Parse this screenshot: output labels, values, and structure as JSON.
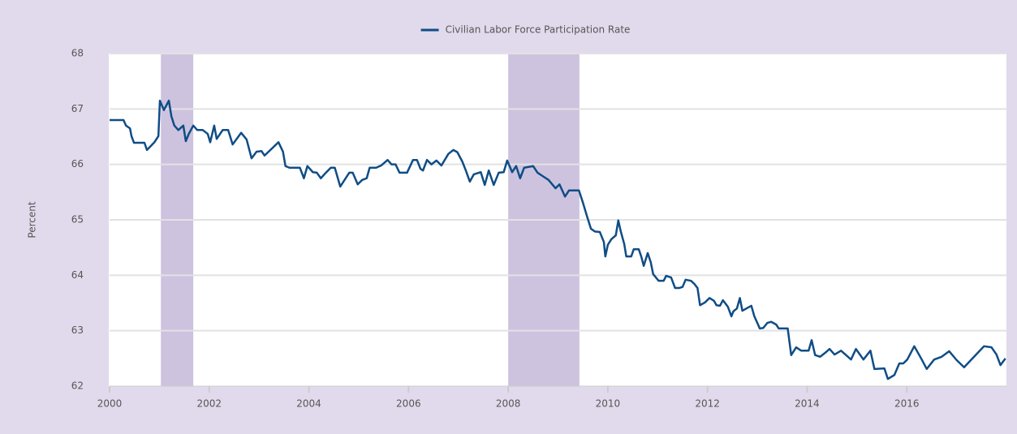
{
  "chart_data": {
    "type": "line",
    "y_label": "Percent",
    "xlim": [
      2000,
      2018
    ],
    "xticks": [
      2000,
      2002,
      2004,
      2006,
      2008,
      2010,
      2012,
      2014,
      2016
    ],
    "ylim": [
      62,
      68
    ],
    "yticks": [
      62,
      63,
      64,
      65,
      66,
      67,
      68
    ],
    "grid": true,
    "legend": "top",
    "shaded_periods": [
      {
        "start": 2001.03,
        "end": 2001.68,
        "color": "#cdc3df"
      },
      {
        "start": 2008.0,
        "end": 2009.43,
        "color": "#cdc3df"
      }
    ],
    "series": [
      {
        "name": "Civilian Labor Force Participation Rate",
        "color": "#0f4d86",
        "x": [
          2000.0,
          2000.28,
          2000.33,
          2000.41,
          2000.44,
          2000.49,
          2000.7,
          2000.75,
          2000.9,
          2000.98,
          2001.01,
          2001.09,
          2001.19,
          2001.24,
          2001.3,
          2001.38,
          2001.48,
          2001.53,
          2001.59,
          2001.68,
          2001.76,
          2001.87,
          2001.97,
          2002.02,
          2002.1,
          2002.15,
          2002.27,
          2002.38,
          2002.47,
          2002.64,
          2002.75,
          2002.85,
          2002.95,
          2003.05,
          2003.11,
          2003.39,
          2003.48,
          2003.53,
          2003.61,
          2003.82,
          2003.9,
          2003.97,
          2004.08,
          2004.16,
          2004.24,
          2004.32,
          2004.44,
          2004.52,
          2004.63,
          2004.81,
          2004.88,
          2004.98,
          2005.07,
          2005.16,
          2005.22,
          2005.35,
          2005.45,
          2005.58,
          2005.66,
          2005.74,
          2005.82,
          2005.97,
          2006.09,
          2006.17,
          2006.24,
          2006.29,
          2006.37,
          2006.46,
          2006.56,
          2006.66,
          2006.8,
          2006.9,
          2006.98,
          2007.08,
          2007.15,
          2007.23,
          2007.31,
          2007.45,
          2007.53,
          2007.61,
          2007.71,
          2007.81,
          2007.91,
          2007.98,
          2008.08,
          2008.16,
          2008.24,
          2008.32,
          2008.5,
          2008.59,
          2008.69,
          2008.81,
          2008.95,
          2009.03,
          2009.14,
          2009.22,
          2009.42,
          2009.5,
          2009.58,
          2009.66,
          2009.74,
          2009.84,
          2009.92,
          2009.95,
          2010.0,
          2010.07,
          2010.16,
          2010.21,
          2010.26,
          2010.33,
          2010.37,
          2010.47,
          2010.52,
          2010.62,
          2010.67,
          2010.72,
          2010.8,
          2010.86,
          2010.91,
          2011.02,
          2011.12,
          2011.17,
          2011.27,
          2011.35,
          2011.43,
          2011.5,
          2011.56,
          2011.67,
          2011.74,
          2011.8,
          2011.85,
          2011.95,
          2012.04,
          2012.13,
          2012.18,
          2012.25,
          2012.31,
          2012.36,
          2012.41,
          2012.48,
          2012.52,
          2012.59,
          2012.65,
          2012.7,
          2012.78,
          2012.88,
          2012.94,
          2013.05,
          2013.12,
          2013.2,
          2013.28,
          2013.38,
          2013.43,
          2013.61,
          2013.68,
          2013.78,
          2013.88,
          2013.96,
          2014.03,
          2014.09,
          2014.16,
          2014.26,
          2014.36,
          2014.45,
          2014.55,
          2014.68,
          2014.78,
          2014.88,
          2014.98,
          2015.13,
          2015.27,
          2015.35,
          2015.55,
          2015.62,
          2015.75,
          2015.85,
          2015.93,
          2016.01,
          2016.15,
          2016.3,
          2016.4,
          2016.55,
          2016.7,
          2016.85,
          2017.0,
          2017.15,
          2017.35,
          2017.55,
          2017.7,
          2017.8,
          2017.88,
          2017.98
        ],
        "values": [
          66.8,
          66.8,
          66.7,
          66.65,
          66.51,
          66.39,
          66.39,
          66.26,
          66.4,
          66.51,
          67.15,
          66.98,
          67.15,
          66.87,
          66.7,
          66.62,
          66.7,
          66.42,
          66.55,
          66.7,
          66.62,
          66.62,
          66.55,
          66.4,
          66.7,
          66.46,
          66.62,
          66.62,
          66.36,
          66.57,
          66.45,
          66.11,
          66.23,
          66.24,
          66.16,
          66.4,
          66.23,
          65.97,
          65.94,
          65.94,
          65.75,
          65.97,
          65.86,
          65.85,
          65.75,
          65.83,
          65.94,
          65.94,
          65.6,
          65.85,
          65.85,
          65.64,
          65.72,
          65.75,
          65.94,
          65.94,
          65.98,
          66.08,
          66.0,
          66.0,
          65.85,
          65.85,
          66.08,
          66.08,
          65.92,
          65.89,
          66.08,
          66.0,
          66.07,
          65.98,
          66.19,
          66.26,
          66.22,
          66.05,
          65.89,
          65.69,
          65.82,
          65.86,
          65.63,
          65.89,
          65.63,
          65.85,
          65.86,
          66.07,
          65.86,
          65.97,
          65.75,
          65.94,
          65.97,
          65.85,
          65.79,
          65.72,
          65.57,
          65.64,
          65.42,
          65.53,
          65.53,
          65.31,
          65.07,
          64.84,
          64.79,
          64.78,
          64.6,
          64.34,
          64.55,
          64.65,
          64.72,
          64.99,
          64.79,
          64.56,
          64.34,
          64.34,
          64.47,
          64.47,
          64.34,
          64.17,
          64.4,
          64.24,
          64.02,
          63.9,
          63.9,
          63.99,
          63.96,
          63.77,
          63.77,
          63.79,
          63.92,
          63.9,
          63.84,
          63.77,
          63.46,
          63.51,
          63.59,
          63.54,
          63.46,
          63.45,
          63.55,
          63.49,
          63.43,
          63.26,
          63.35,
          63.4,
          63.59,
          63.36,
          63.4,
          63.45,
          63.26,
          63.04,
          63.05,
          63.14,
          63.16,
          63.11,
          63.04,
          63.04,
          62.56,
          62.7,
          62.64,
          62.64,
          62.64,
          62.83,
          62.56,
          62.53,
          62.6,
          62.67,
          62.57,
          62.64,
          62.56,
          62.48,
          62.67,
          62.48,
          62.64,
          62.31,
          62.32,
          62.13,
          62.2,
          62.41,
          62.41,
          62.48,
          62.72,
          62.48,
          62.31,
          62.48,
          62.53,
          62.63,
          62.47,
          62.34,
          62.53,
          62.72,
          62.7,
          62.57,
          62.38,
          62.5
        ]
      }
    ]
  }
}
